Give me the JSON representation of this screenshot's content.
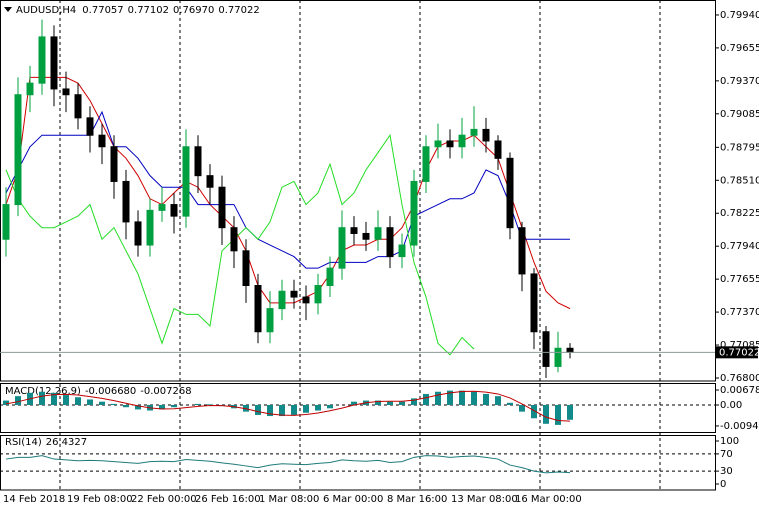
{
  "chart_data": [
    {
      "type": "candlestick",
      "title": "AUDUSD,H4",
      "title_values": [
        "0.77057",
        "0.77102",
        "0.76970",
        "0.77022"
      ],
      "time_labels": [
        "14 Feb 2018",
        "19 Feb 08:00",
        "22 Feb 00:00",
        "26 Feb 16:00",
        "1 Mar 08:00",
        "6 Mar 00:00",
        "8 Mar 16:00",
        "13 Mar 08:00",
        "16 Mar 00:00"
      ],
      "open": [
        0.78,
        0.783,
        0.7925,
        0.7935,
        0.7975,
        0.793,
        0.7925,
        0.7905,
        0.789,
        0.788,
        0.785,
        0.7815,
        0.7795,
        0.7825,
        0.783,
        0.782,
        0.788,
        0.7855,
        0.7845,
        0.781,
        0.779,
        0.776,
        0.772,
        0.774,
        0.7755,
        0.775,
        0.7745,
        0.776,
        0.7775,
        0.781,
        0.7805,
        0.78,
        0.781,
        0.7785,
        0.7795,
        0.785,
        0.788,
        0.7885,
        0.788,
        0.789,
        0.7895,
        0.7885,
        0.787,
        0.781,
        0.777,
        0.772,
        0.769,
        0.77057
      ],
      "high": [
        0.7845,
        0.794,
        0.795,
        0.799,
        0.7985,
        0.7945,
        0.7935,
        0.7915,
        0.79,
        0.789,
        0.786,
        0.7825,
        0.7835,
        0.7845,
        0.784,
        0.7895,
        0.789,
        0.7865,
        0.7855,
        0.782,
        0.78,
        0.777,
        0.7755,
        0.7765,
        0.7765,
        0.776,
        0.777,
        0.7785,
        0.7825,
        0.782,
        0.7815,
        0.7825,
        0.782,
        0.7805,
        0.786,
        0.789,
        0.79,
        0.7895,
        0.7905,
        0.7915,
        0.7905,
        0.789,
        0.7875,
        0.7815,
        0.7775,
        0.7725,
        0.772,
        0.77102
      ],
      "low": [
        0.7785,
        0.782,
        0.791,
        0.7925,
        0.7915,
        0.791,
        0.7895,
        0.7875,
        0.7865,
        0.7835,
        0.78,
        0.7785,
        0.7785,
        0.7815,
        0.7805,
        0.781,
        0.784,
        0.783,
        0.7795,
        0.7775,
        0.7745,
        0.771,
        0.771,
        0.773,
        0.774,
        0.773,
        0.7735,
        0.775,
        0.7765,
        0.7795,
        0.779,
        0.779,
        0.7775,
        0.7775,
        0.7785,
        0.784,
        0.787,
        0.787,
        0.787,
        0.788,
        0.7875,
        0.786,
        0.78,
        0.7755,
        0.7705,
        0.768,
        0.7685,
        0.7697
      ],
      "close": [
        0.783,
        0.7925,
        0.7935,
        0.7975,
        0.793,
        0.7925,
        0.7905,
        0.789,
        0.788,
        0.785,
        0.7815,
        0.7795,
        0.7825,
        0.783,
        0.782,
        0.788,
        0.7855,
        0.7845,
        0.781,
        0.779,
        0.776,
        0.772,
        0.774,
        0.7755,
        0.775,
        0.7745,
        0.776,
        0.7775,
        0.781,
        0.7805,
        0.78,
        0.781,
        0.7785,
        0.7795,
        0.785,
        0.788,
        0.7885,
        0.788,
        0.789,
        0.7895,
        0.7885,
        0.787,
        0.781,
        0.777,
        0.772,
        0.769,
        0.77057,
        0.77022
      ],
      "up_color": "#00a040",
      "down_color": "#000000",
      "series": [
        {
          "color": "#d00000",
          "values": [
            0.783,
            0.786,
            0.794,
            0.794,
            0.794,
            0.794,
            0.7935,
            0.792,
            0.79,
            0.788,
            0.787,
            0.7855,
            0.7835,
            0.783,
            0.784,
            0.785,
            0.7845,
            0.783,
            0.782,
            0.781,
            0.779,
            0.776,
            0.7745,
            0.7745,
            0.7745,
            0.775,
            0.7755,
            0.777,
            0.779,
            0.7795,
            0.7795,
            0.78,
            0.78,
            0.781,
            0.783,
            0.786,
            0.788,
            0.7885,
            0.7885,
            0.789,
            0.788,
            0.787,
            0.784,
            0.781,
            0.778,
            0.7755,
            0.7745,
            0.774
          ]
        },
        {
          "color": "#0000c0",
          "values": [
            0.784,
            0.786,
            0.788,
            0.789,
            0.789,
            0.789,
            0.789,
            0.789,
            0.791,
            0.788,
            0.788,
            0.787,
            0.7855,
            0.7845,
            0.7845,
            0.7845,
            0.783,
            0.783,
            0.783,
            0.783,
            0.781,
            0.78,
            0.7795,
            0.779,
            0.7785,
            0.7775,
            0.7775,
            0.778,
            0.778,
            0.778,
            0.778,
            0.7785,
            0.7785,
            0.779,
            0.782,
            0.7825,
            0.783,
            0.7835,
            0.7835,
            0.784,
            0.786,
            0.7855,
            0.783,
            0.78,
            0.78,
            0.78,
            0.78,
            0.78
          ]
        },
        {
          "color": "#22dd22",
          "values": [
            0.786,
            0.7835,
            0.782,
            0.781,
            0.781,
            0.7815,
            0.782,
            0.783,
            0.78,
            0.781,
            0.779,
            0.777,
            0.774,
            0.771,
            0.774,
            0.7735,
            0.7735,
            0.7725,
            0.779,
            0.78,
            0.781,
            0.78,
            0.7815,
            0.7845,
            0.785,
            0.783,
            0.784,
            0.7865,
            0.783,
            0.784,
            0.786,
            0.7875,
            0.789,
            0.783,
            0.778,
            0.775,
            0.771,
            0.77,
            0.7715,
            0.7705,
            null,
            null,
            null,
            null,
            null,
            null,
            null,
            null
          ]
        }
      ],
      "ylim": [
        0.76774,
        0.80052
      ],
      "yticks": [
        {
          "value": 0.7994,
          "label": "0.79940"
        },
        {
          "value": 0.79655,
          "label": "0.79655"
        },
        {
          "value": 0.7937,
          "label": "0.79370"
        },
        {
          "value": 0.79085,
          "label": "0.79085"
        },
        {
          "value": 0.78795,
          "label": "0.78795"
        },
        {
          "value": 0.7851,
          "label": "0.78510"
        },
        {
          "value": 0.78225,
          "label": "0.78225"
        },
        {
          "value": 0.7794,
          "label": "0.77940"
        },
        {
          "value": 0.77655,
          "label": "0.77655"
        },
        {
          "value": 0.7737,
          "label": "0.77370"
        },
        {
          "value": 0.77085,
          "label": "0.77085"
        },
        {
          "value": 0.768,
          "label": "0.76800"
        }
      ],
      "last_price": {
        "value": 0.77022,
        "label": "0.77022"
      }
    },
    {
      "type": "macd",
      "title": "MACD(12,26,9)",
      "title_values": [
        "-0.006680",
        "-0.007268"
      ],
      "histogram": {
        "color": "#138a8a",
        "values": [
          0.002,
          0.004,
          0.0055,
          0.006,
          0.0055,
          0.0045,
          0.0035,
          0.0025,
          0.0015,
          0.0005,
          -0.001,
          -0.002,
          -0.0025,
          -0.002,
          -0.001,
          0,
          0.0005,
          0.0003,
          -0.0005,
          -0.0015,
          -0.003,
          -0.0045,
          -0.005,
          -0.005,
          -0.0045,
          -0.0035,
          -0.0025,
          -0.0015,
          0,
          0.0015,
          0.002,
          0.002,
          0.0015,
          0.0015,
          0.003,
          0.005,
          0.006,
          0.0065,
          0.0065,
          0.006,
          0.005,
          0.004,
          0.001,
          -0.003,
          -0.006,
          -0.0085,
          -0.009,
          -0.00668
        ]
      },
      "signal": {
        "color": "#c00000",
        "values": [
          0.0005,
          0.0015,
          0.0028,
          0.004,
          0.0047,
          0.0048,
          0.0045,
          0.0038,
          0.003,
          0.002,
          0.0008,
          -0.0004,
          -0.0013,
          -0.0018,
          -0.0017,
          -0.0012,
          -0.0006,
          -0.0002,
          -0.0003,
          -0.0008,
          -0.0017,
          -0.003,
          -0.004,
          -0.0046,
          -0.0047,
          -0.0043,
          -0.0036,
          -0.0026,
          -0.0014,
          0,
          0.001,
          0.0016,
          0.0017,
          0.0017,
          0.0022,
          0.0033,
          0.0045,
          0.0055,
          0.0061,
          0.0062,
          0.0058,
          0.005,
          0.0032,
          0.0005,
          -0.0025,
          -0.0055,
          -0.007,
          -0.007268
        ]
      },
      "ylim": [
        -0.01266,
        0.00995
      ],
      "yticks": [
        0.006783,
        {
          "value": 0,
          "label": "0.00"
        },
        -0.009472
      ]
    },
    {
      "type": "line",
      "title": "RSI(14)",
      "color": "#1e7b7b",
      "values": [
        58,
        62,
        62,
        66,
        58,
        56,
        54,
        55,
        54,
        52,
        50,
        48,
        52,
        53,
        52,
        57,
        55,
        53,
        49,
        46,
        42,
        38,
        44,
        47,
        46,
        45,
        48,
        50,
        56,
        54,
        53,
        55,
        50,
        52,
        62,
        66,
        65,
        62,
        64,
        65,
        62,
        58,
        44,
        38,
        30,
        26,
        28,
        26.4327
      ],
      "ylim": [
        -13.95,
        113.95
      ],
      "yticks": [
        100,
        70,
        30,
        0
      ],
      "levels": [
        70,
        30
      ]
    }
  ]
}
